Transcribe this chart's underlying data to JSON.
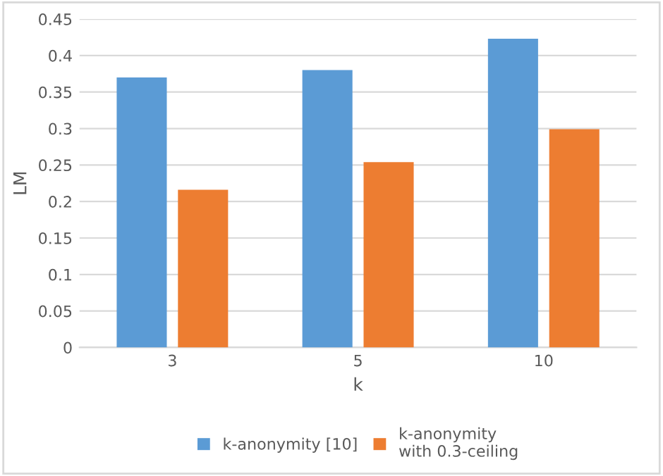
{
  "chart_data": {
    "type": "bar",
    "xlabel": "k",
    "ylabel": "LM",
    "categories": [
      "3",
      "5",
      "10"
    ],
    "series": [
      {
        "name": "k-anonymity [10]",
        "color": "#5b9bd5",
        "values": [
          0.37,
          0.38,
          0.423
        ]
      },
      {
        "name": "k-anonymity\nwith 0.3-ceiling",
        "color": "#ed7d31",
        "values": [
          0.216,
          0.254,
          0.299
        ]
      }
    ],
    "ylim": [
      0,
      0.45
    ],
    "yticks": [
      0,
      0.05,
      0.1,
      0.15,
      0.2,
      0.25,
      0.3,
      0.35,
      0.4,
      0.45
    ],
    "grid": "y",
    "legend": "bottom"
  }
}
